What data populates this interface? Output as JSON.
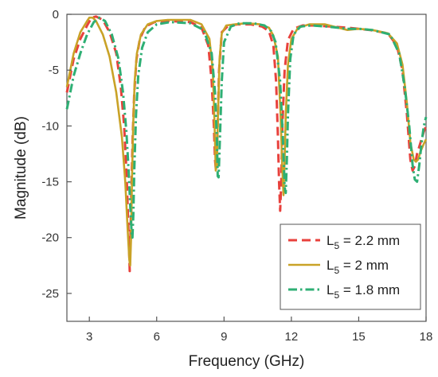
{
  "chart_data": {
    "type": "line",
    "xlabel": "Frequency (GHz)",
    "ylabel": "Magnitude (dB)",
    "xlim": [
      2,
      18
    ],
    "ylim": [
      -27.5,
      0
    ],
    "xticks": [
      3,
      6,
      9,
      12,
      15,
      18
    ],
    "yticks": [
      0,
      -5,
      -10,
      -15,
      -20,
      -25
    ],
    "grid": false,
    "legend_position": "bottom-right",
    "series": [
      {
        "name": "L5 = 2.2 mm",
        "legend_base": "L",
        "legend_sub": "5",
        "legend_rest": " = 2.2 mm",
        "color": "#e8413c",
        "dash": "dashed",
        "x": [
          2.0,
          2.3,
          2.6,
          2.9,
          3.1,
          3.3,
          3.6,
          3.9,
          4.2,
          4.4,
          4.55,
          4.65,
          4.72,
          4.77,
          4.8,
          4.83,
          4.87,
          4.93,
          5.0,
          5.1,
          5.25,
          5.5,
          5.9,
          6.5,
          7.5,
          8.0,
          8.3,
          8.45,
          8.55,
          8.6,
          8.64,
          8.7,
          8.78,
          8.9,
          9.2,
          9.6,
          10.2,
          10.7,
          11.0,
          11.2,
          11.32,
          11.4,
          11.45,
          11.5,
          11.55,
          11.6,
          11.7,
          11.85,
          12.1,
          12.5,
          13.0,
          13.8,
          14.5,
          15.0,
          15.5,
          16.3,
          16.7,
          16.95,
          17.15,
          17.3,
          17.4,
          17.5,
          17.6,
          17.75,
          17.9,
          18.0
        ],
        "y": [
          -7.0,
          -4.0,
          -2.2,
          -1.0,
          -0.3,
          -0.2,
          -0.5,
          -1.6,
          -3.5,
          -6.5,
          -10.0,
          -14.0,
          -18.0,
          -21.0,
          -23.0,
          -20.0,
          -16.0,
          -11.0,
          -7.0,
          -4.0,
          -2.2,
          -1.1,
          -0.7,
          -0.6,
          -0.7,
          -1.2,
          -2.8,
          -6.0,
          -10.0,
          -13.0,
          -14.0,
          -11.0,
          -5.0,
          -1.6,
          -1.0,
          -0.9,
          -0.9,
          -1.1,
          -1.5,
          -2.8,
          -6.0,
          -11.0,
          -15.0,
          -17.6,
          -15.0,
          -10.0,
          -5.0,
          -2.3,
          -1.3,
          -1.0,
          -1.0,
          -1.1,
          -1.2,
          -1.3,
          -1.4,
          -1.7,
          -2.8,
          -5.0,
          -9.0,
          -13.0,
          -14.0,
          -13.6,
          -12.5,
          -11.5,
          -10.5,
          -10.0
        ]
      },
      {
        "name": "L5 = 2 mm",
        "legend_base": "L",
        "legend_sub": "5",
        "legend_rest": " = 2 mm",
        "color": "#c9a227",
        "dash": "solid",
        "x": [
          2.0,
          2.3,
          2.6,
          2.9,
          3.0,
          3.15,
          3.3,
          3.6,
          3.9,
          4.2,
          4.45,
          4.6,
          4.7,
          4.78,
          4.82,
          4.86,
          4.9,
          4.95,
          5.02,
          5.12,
          5.3,
          5.6,
          6.0,
          6.5,
          7.5,
          8.0,
          8.35,
          8.5,
          8.58,
          8.63,
          8.68,
          8.73,
          8.8,
          8.9,
          9.1,
          9.5,
          10.0,
          10.6,
          11.0,
          11.2,
          11.4,
          11.52,
          11.6,
          11.65,
          11.7,
          11.75,
          11.85,
          12.0,
          12.3,
          12.8,
          13.5,
          14.5,
          15.0,
          15.6,
          16.3,
          16.7,
          16.95,
          17.15,
          17.3,
          17.45,
          17.55,
          17.65,
          17.75,
          17.9,
          18.0
        ],
        "y": [
          -6.5,
          -3.5,
          -1.6,
          -0.6,
          -0.3,
          -0.3,
          -0.6,
          -1.8,
          -3.8,
          -7.0,
          -11.0,
          -15.0,
          -19.0,
          -22.0,
          -22.5,
          -20.0,
          -15.0,
          -10.0,
          -6.0,
          -3.5,
          -1.8,
          -0.9,
          -0.6,
          -0.5,
          -0.5,
          -0.9,
          -2.2,
          -5.0,
          -10.0,
          -14.0,
          -13.5,
          -9.0,
          -4.0,
          -1.7,
          -1.0,
          -0.9,
          -0.8,
          -0.9,
          -1.2,
          -1.9,
          -3.8,
          -9.0,
          -14.0,
          -16.2,
          -13.0,
          -9.0,
          -4.5,
          -2.2,
          -1.2,
          -0.9,
          -0.9,
          -1.4,
          -1.3,
          -1.4,
          -1.7,
          -2.6,
          -4.5,
          -8.0,
          -11.5,
          -13.0,
          -13.2,
          -13.0,
          -12.3,
          -11.6,
          -11.2
        ]
      },
      {
        "name": "L5 = 1.8 mm",
        "legend_base": "L",
        "legend_sub": "5",
        "legend_rest": " = 1.8 mm",
        "color": "#2eaf74",
        "dash": "dashdot",
        "x": [
          2.0,
          2.3,
          2.6,
          2.9,
          3.2,
          3.45,
          3.7,
          4.0,
          4.3,
          4.5,
          4.65,
          4.75,
          4.83,
          4.88,
          4.92,
          4.96,
          5.0,
          5.08,
          5.18,
          5.35,
          5.6,
          6.0,
          6.6,
          7.5,
          8.1,
          8.45,
          8.6,
          8.68,
          8.72,
          8.76,
          8.82,
          8.9,
          9.0,
          9.3,
          9.7,
          10.3,
          10.8,
          11.1,
          11.3,
          11.5,
          11.62,
          11.7,
          11.75,
          11.8,
          11.85,
          11.95,
          12.1,
          12.4,
          12.9,
          13.6,
          14.5,
          15.0,
          15.6,
          16.4,
          16.8,
          17.05,
          17.25,
          17.4,
          17.5,
          17.6,
          17.7,
          17.8,
          17.9,
          18.0
        ],
        "y": [
          -8.5,
          -5.5,
          -3.5,
          -1.8,
          -0.7,
          -0.3,
          -0.6,
          -1.8,
          -4.0,
          -7.0,
          -10.5,
          -14.0,
          -17.5,
          -19.5,
          -20.0,
          -18.0,
          -14.0,
          -9.0,
          -5.5,
          -3.0,
          -1.6,
          -0.9,
          -0.7,
          -0.8,
          -1.4,
          -3.5,
          -7.0,
          -11.0,
          -14.5,
          -14.6,
          -11.0,
          -6.0,
          -2.5,
          -1.1,
          -0.8,
          -0.8,
          -1.0,
          -1.5,
          -2.5,
          -6.0,
          -11.0,
          -15.5,
          -16.0,
          -13.0,
          -9.0,
          -4.0,
          -1.8,
          -1.1,
          -1.0,
          -1.1,
          -1.3,
          -1.3,
          -1.4,
          -1.8,
          -3.5,
          -6.5,
          -10.0,
          -13.5,
          -14.8,
          -15.0,
          -13.5,
          -11.5,
          -10.0,
          -9.2
        ]
      }
    ]
  }
}
